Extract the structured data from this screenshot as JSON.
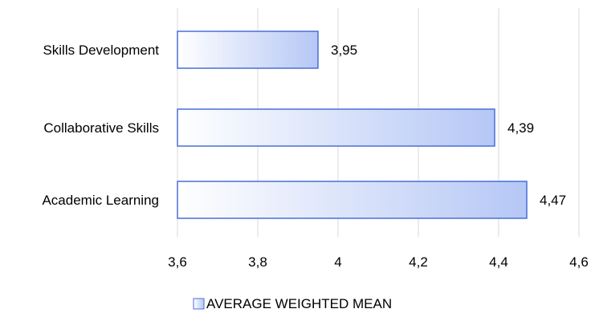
{
  "chart_data": {
    "type": "bar",
    "orientation": "horizontal",
    "categories": [
      "Skills Development",
      "Collaborative Skills",
      "Academic Learning"
    ],
    "series": [
      {
        "name": "AVERAGE WEIGHTED MEAN",
        "values": [
          3.95,
          4.39,
          4.47
        ]
      }
    ],
    "value_labels": [
      "3,95",
      "4,39",
      "4,47"
    ],
    "xlim": [
      3.6,
      4.6
    ],
    "xticks": [
      3.6,
      3.8,
      4.0,
      4.2,
      4.4,
      4.6
    ],
    "xtick_labels": [
      "3,6",
      "3,8",
      "4",
      "4,2",
      "4,4",
      "4,6"
    ],
    "grid": "vertical",
    "legend_position": "bottom",
    "colors": {
      "bar_fill_light": "#ffffff",
      "bar_fill_dark": "#b5c7f5",
      "bar_stroke": "#4a6fd6",
      "grid": "#d9d9d9"
    }
  }
}
